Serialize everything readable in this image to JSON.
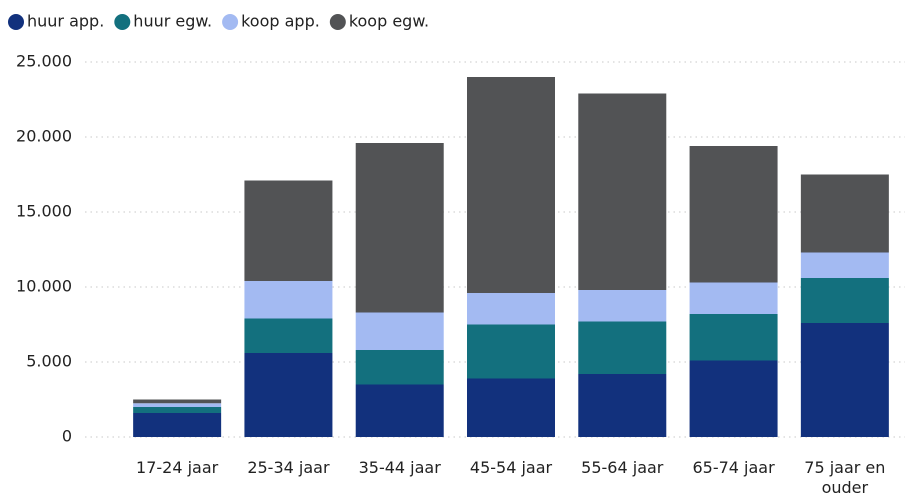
{
  "chart_data": {
    "type": "stacked_bar",
    "categories": [
      "17-24 jaar",
      "25-34 jaar",
      "35-44 jaar",
      "45-54 jaar",
      "55-64 jaar",
      "65-74 jaar",
      "75 jaar en ouder"
    ],
    "series": [
      {
        "name": "huur app.",
        "color": "#12317d",
        "values": [
          1600,
          5600,
          3500,
          3900,
          4200,
          5100,
          7600
        ]
      },
      {
        "name": "huur egw.",
        "color": "#13707e",
        "values": [
          400,
          2300,
          2300,
          3600,
          3500,
          3100,
          3000
        ]
      },
      {
        "name": "koop app.",
        "color": "#a3baf2",
        "values": [
          250,
          2500,
          2500,
          2100,
          2100,
          2100,
          1700
        ]
      },
      {
        "name": "koop egw.",
        "color": "#525355",
        "values": [
          250,
          6700,
          11300,
          14400,
          13100,
          9100,
          5200
        ]
      }
    ],
    "ylim": [
      0,
      25000
    ],
    "yticks": [
      0,
      {
        "value": 5000,
        "label": "5.000"
      },
      {
        "value": 10000,
        "label": "10.000"
      },
      {
        "value": 15000,
        "label": "15.000"
      },
      {
        "value": 20000,
        "label": "20.000"
      },
      {
        "value": 25000,
        "label": "25.000"
      }
    ],
    "grid": true,
    "legend": "top-left"
  }
}
